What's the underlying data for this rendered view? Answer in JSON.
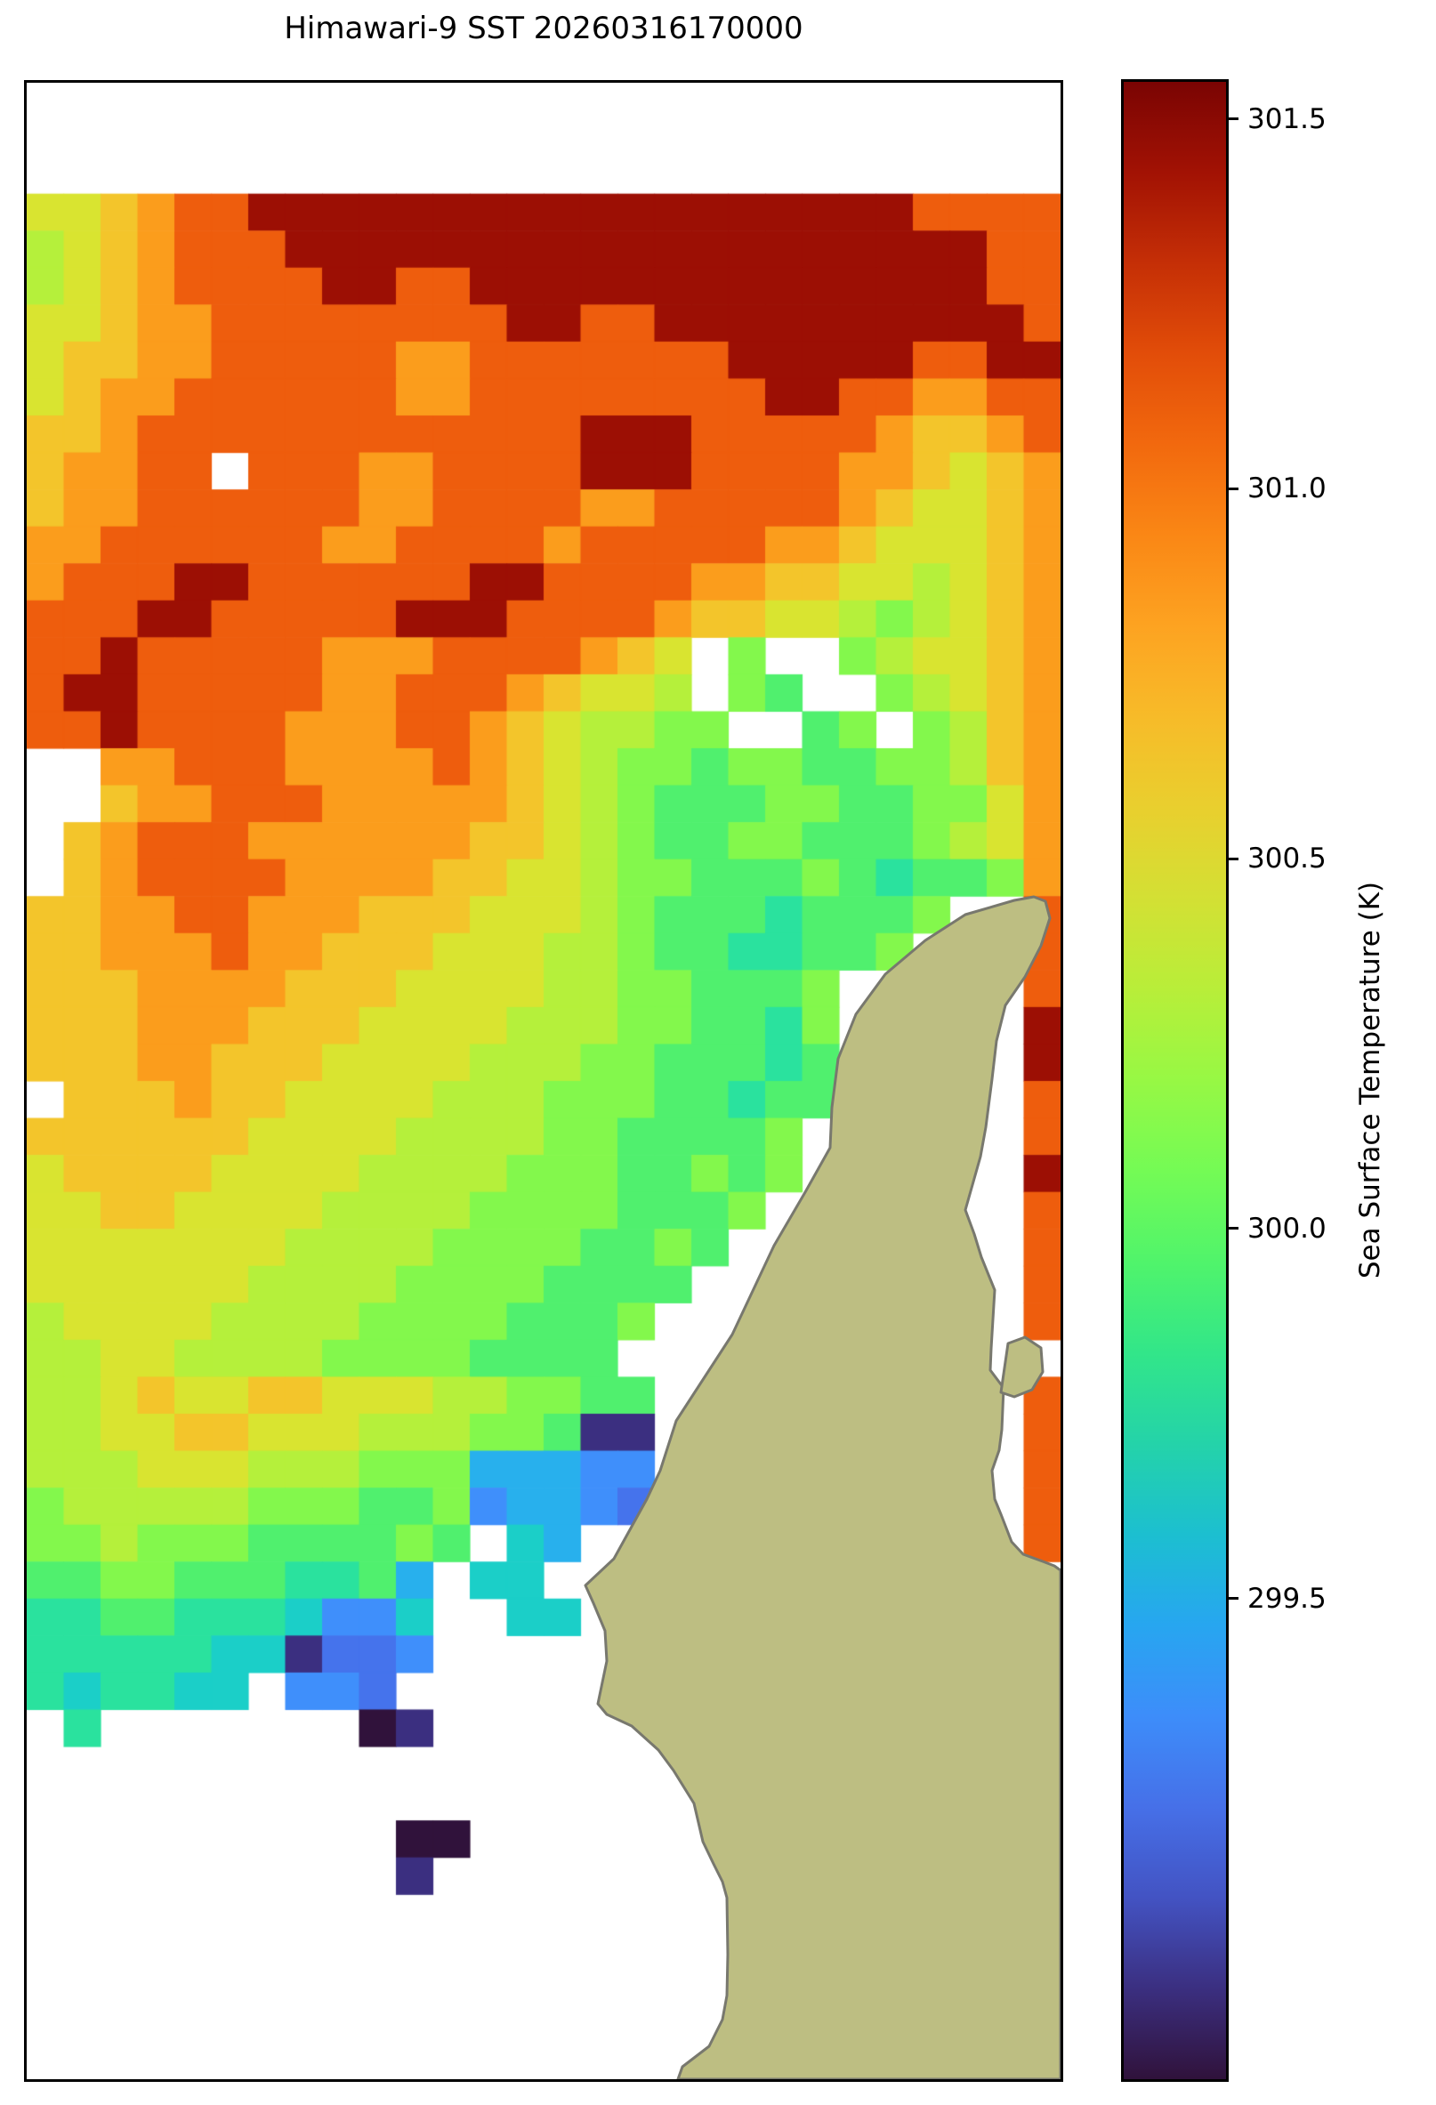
{
  "title": "Himawari-9 SST 20260316170000",
  "colorbar": {
    "label": "Sea Surface Temperature (K)",
    "vmin_K": 298.85,
    "vmax_K": 301.55,
    "ticks": [
      {
        "label": "301.5",
        "frac_from_top": 0.0185
      },
      {
        "label": "301.0",
        "frac_from_top": 0.2037
      },
      {
        "label": "300.5",
        "frac_from_top": 0.3889
      },
      {
        "label": "300.0",
        "frac_from_top": 0.5741
      },
      {
        "label": "299.5",
        "frac_from_top": 0.7593
      }
    ],
    "gradient_stops_top_to_bottom": [
      "#7a0403",
      "#a21204",
      "#c52f06",
      "#e24d09",
      "#f2690e",
      "#fa8715",
      "#fda321",
      "#f7bb29",
      "#e9cf2e",
      "#d3e034",
      "#b8ee39",
      "#97f844",
      "#74fb55",
      "#50f46b",
      "#32e689",
      "#24d3a9",
      "#1cbfd0",
      "#27a6f0",
      "#3d8dfa",
      "#4670e8",
      "#4353c3",
      "#3b2f80",
      "#30123b"
    ]
  },
  "chart_data": {
    "type": "heatmap",
    "title": "Himawari-9 SST 20260316170000",
    "value_label": "Sea Surface Temperature (K)",
    "colormap": "turbo",
    "value_range_K": [
      298.85,
      301.55
    ],
    "grid_cols": 28,
    "grid_rows": 54,
    "cell_encoding": "hex char 0-f = palette index (temp = 298.85 + idx*0.18 K); '.' = no data (white)",
    "palette": [
      "#30123b",
      "#3b2f80",
      "#4353c3",
      "#4573ec",
      "#3f8ffb",
      "#28b0ed",
      "#1bcfc8",
      "#2ae29e",
      "#50f06e",
      "#83f84c",
      "#b5f03b",
      "#d9e430",
      "#f3c52b",
      "#fb9d1c",
      "#ee5d0d",
      "#9c0f04"
    ],
    "palette_temps_K": [
      298.85,
      299.03,
      299.21,
      299.39,
      299.57,
      299.75,
      299.93,
      300.11,
      300.29,
      300.47,
      300.65,
      300.83,
      301.01,
      301.19,
      301.37,
      301.55
    ],
    "rows": [
      "............................",
      "............................",
      "............................",
      "bbcdeeffffffffffffffffffeeee",
      "abcdeeefffffffffffffffffffee",
      "abcdeeeeffeeffffffffffffffee",
      "bbcddeeeeeeeeffeeffffffffffe",
      "bccddeeeeeddeeeeeeefffffeeff",
      "bcddeeeeeeddeeeeeeeeffeeddee",
      "ccdeeeeeeeeeeeefffeeeeedccde",
      "cddee.eeeddeeeefffeeeeddcbcd",
      "cddeeeeeeddeeeeddeeeeedcbbcd",
      "ddeeeeeeddeeeedeeeeeddcbbbcd",
      "deeeffeeeeeeffeeeeddccbbabcd",
      "eeeffeeeeefffeeeedccbba9abcd",
      "eefeeeeedddeeeedcb.9..9abbcd",
      "effeeeeeddeeedcbba.98..9abcd",
      "eefeeeedddeedcbaa99..89.9acd",
      "..ddeeeddddedcba998998899acd",
      "..cddeeedddddcba9888998899bd",
      ".cdeeeddddddccba988998889abd",
      ".cdeeeeddddccbba99888987889d",
      "ccddeedddcccbbba988878889..e",
      "ccdddeddcccbbbaa98877889...e",
      "cccddddcccbbbbaa998889.....e",
      "cccdddcccbbbbaaa998879.....f",
      "cccddcccbbbbaaa9988878.....f",
      ".cccdccbbbbaaa99988788.....e",
      "ccccccbbbbaaaa9988889......e",
      "bccccbbbbaaaa99988989......f",
      "bbccbbbbaaaa99998889.......e",
      "bbbbbbbaaaa99998898........e",
      "bbbbbbaaaa99998888.........e",
      "abbbbaaaa99998889..........e",
      "aabbaaaa99998888............",
      "aabcbbccbbbaa9988..........e",
      "aabbccbbbaaa99811..........e",
      "aaabbbaaa99955544..........e",
      "9aaaaa999889455433.........e",
      "99a999888898.65............e",
      "88998887785.66..............",
      "77887776446..66.............",
      "77777661334.................",
      "767766.443..................",
      ".7.......01.................",
      "............................",
      "............................",
      "..........00................",
      "..........1.................",
      "............................",
      "............................",
      "............................",
      "............................",
      "............................"
    ],
    "land": {
      "fill": "#bdbe82",
      "stroke": "#78786e",
      "stroke_width": 3,
      "outline": [
        [
          1162,
          1672
        ],
        [
          1155,
          1667
        ],
        [
          1142,
          1662
        ],
        [
          1120,
          1654
        ],
        [
          1107,
          1640
        ],
        [
          1095,
          1609
        ],
        [
          1088,
          1592
        ],
        [
          1085,
          1560
        ],
        [
          1093,
          1537
        ],
        [
          1096,
          1514
        ],
        [
          1098,
          1467
        ],
        [
          1083,
          1447
        ],
        [
          1084,
          1423
        ],
        [
          1088,
          1357
        ],
        [
          1073,
          1320
        ],
        [
          1065,
          1294
        ],
        [
          1055,
          1267
        ],
        [
          1072,
          1207
        ],
        [
          1078,
          1174
        ],
        [
          1085,
          1120
        ],
        [
          1090,
          1077
        ],
        [
          1100,
          1037
        ],
        [
          1122,
          1005
        ],
        [
          1140,
          970
        ],
        [
          1150,
          939
        ],
        [
          1145,
          920
        ],
        [
          1132,
          915
        ],
        [
          1110,
          919
        ],
        [
          1055,
          935
        ],
        [
          1010,
          964
        ],
        [
          965,
          1002
        ],
        [
          932,
          1047
        ],
        [
          912,
          1097
        ],
        [
          905,
          1152
        ],
        [
          903,
          1197
        ],
        [
          875,
          1247
        ],
        [
          840,
          1307
        ],
        [
          793,
          1407
        ],
        [
          730,
          1504
        ],
        [
          712,
          1560
        ],
        [
          697,
          1592
        ],
        [
          660,
          1659
        ],
        [
          628,
          1689
        ],
        [
          637,
          1709
        ],
        [
          650,
          1740
        ],
        [
          652,
          1774
        ],
        [
          642,
          1822
        ],
        [
          652,
          1834
        ],
        [
          680,
          1847
        ],
        [
          710,
          1874
        ],
        [
          727,
          1897
        ],
        [
          750,
          1934
        ],
        [
          760,
          1977
        ],
        [
          772,
          2002
        ],
        [
          782,
          2022
        ],
        [
          787,
          2040
        ],
        [
          788,
          2104
        ],
        [
          787,
          2150
        ],
        [
          782,
          2177
        ],
        [
          767,
          2207
        ],
        [
          737,
          2230
        ],
        [
          732,
          2244
        ],
        [
          1162,
          2244
        ]
      ],
      "island": [
        [
          1095,
          1472
        ],
        [
          1103,
          1417
        ],
        [
          1122,
          1410
        ],
        [
          1140,
          1422
        ],
        [
          1142,
          1449
        ],
        [
          1130,
          1469
        ],
        [
          1110,
          1477
        ]
      ]
    },
    "no_data_color": "#ffffff",
    "axes_border_color": "#000000"
  }
}
